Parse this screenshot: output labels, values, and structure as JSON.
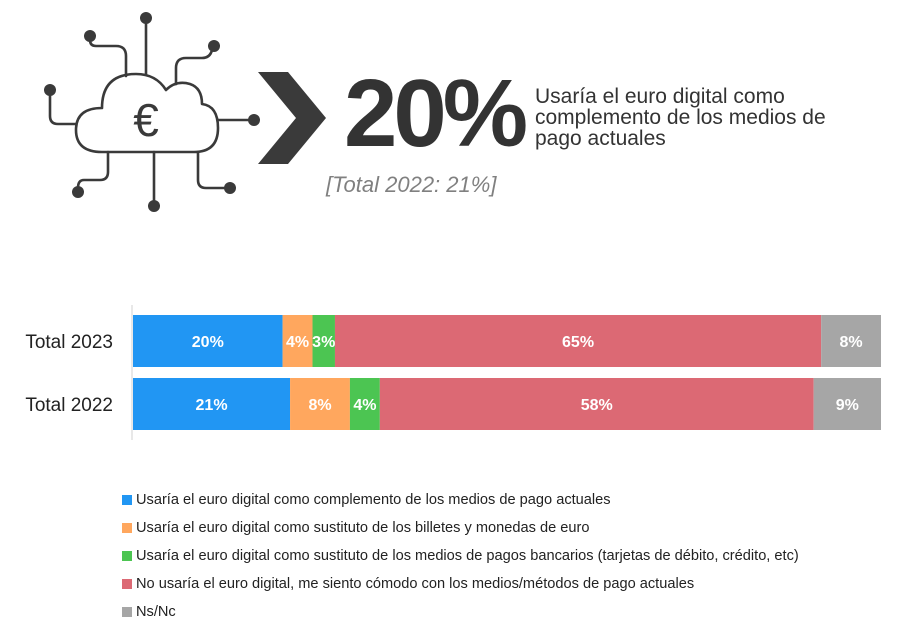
{
  "headline": {
    "value": "20%",
    "description": "Usaría el euro digital como complemento de los medios de pago actuales",
    "previous": "[Total 2022: 21%]",
    "icon": "cloud-euro-circuit-icon",
    "arrow_icon": "chevron-right-icon",
    "icon_color": "#3a3a3a"
  },
  "chart_data": {
    "type": "bar",
    "orientation": "horizontal",
    "stacked": true,
    "categories": [
      "Total 2023",
      "Total 2022"
    ],
    "xlim": [
      0,
      100
    ],
    "grid": false,
    "legend_position": "bottom",
    "series": [
      {
        "name": "Usaría el euro digital como complemento de los medios de pago actuales",
        "values": [
          20,
          21
        ],
        "labels": [
          "20%",
          "21%"
        ],
        "color": "#2196f3"
      },
      {
        "name": "Usaría el euro digital como sustituto de los billetes y monedas de euro",
        "values": [
          4,
          8
        ],
        "labels": [
          "4%",
          "8%"
        ],
        "color": "#ffa75e"
      },
      {
        "name": "Usaría el euro digital como sustituto de los medios de pagos bancarios (tarjetas de débito, crédito, etc)",
        "values": [
          3,
          4
        ],
        "labels": [
          "3%",
          "4%"
        ],
        "color": "#4cc552"
      },
      {
        "name": "No usaría el euro digital, me siento cómodo con los medios/métodos de pago actuales",
        "values": [
          65,
          58
        ],
        "labels": [
          "65%",
          "58%"
        ],
        "color": "#dc6974"
      },
      {
        "name": "Ns/Nc",
        "values": [
          8,
          9
        ],
        "labels": [
          "8%",
          "9%"
        ],
        "color": "#a6a6a6"
      }
    ]
  }
}
